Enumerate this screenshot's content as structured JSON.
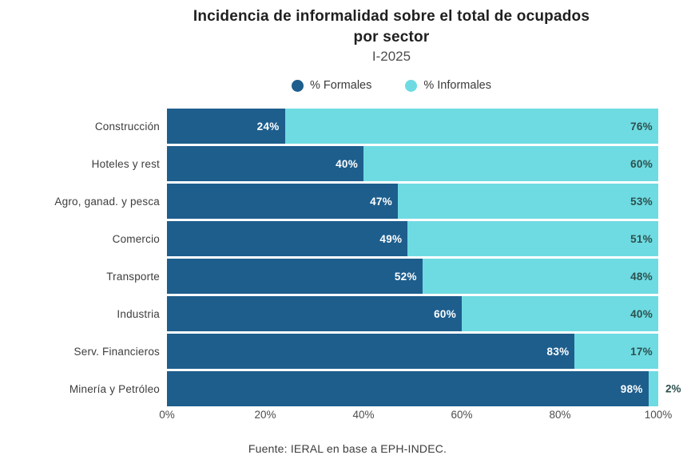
{
  "chart_data": {
    "type": "bar",
    "orientation": "horizontal",
    "stacked": true,
    "title": "Incidencia de informalidad sobre el total de ocupados por sector",
    "subtitle": "I-2025",
    "categories": [
      "Construcción",
      "Hoteles y rest",
      "Agro, ganad. y pesca",
      "Comercio",
      "Transporte",
      "Industria",
      "Serv. Financieros",
      "Minería y Petróleo"
    ],
    "series": [
      {
        "name": "% Formales",
        "color": "#1d5e8d",
        "values": [
          24,
          40,
          47,
          49,
          52,
          60,
          83,
          98
        ]
      },
      {
        "name": "% Informales",
        "color": "#6edbe2",
        "values": [
          76,
          60,
          53,
          51,
          48,
          40,
          17,
          2
        ]
      }
    ],
    "value_suffix": "%",
    "xlim": [
      0,
      100
    ],
    "x_ticks": [
      "0%",
      "20%",
      "40%",
      "60%",
      "80%",
      "100%"
    ],
    "grid": false,
    "legend_position": "top",
    "source": "Fuente: IERAL en base a EPH-INDEC."
  },
  "style": {
    "formal_label_color": "#ffffff",
    "informal_label_color": "#2d504e",
    "outside_label_threshold": 5
  }
}
